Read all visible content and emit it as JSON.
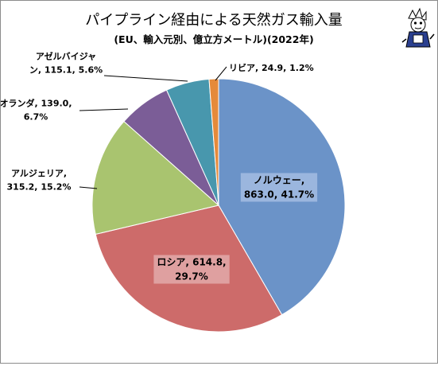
{
  "chart_data": {
    "type": "pie",
    "title": "パイプライン経由による天然ガス輸入量",
    "subtitle": "(EU、輸入元別、億立方メートル)(2022年)",
    "start_angle_deg": 0,
    "direction": "clockwise",
    "slices": [
      {
        "name": "ノルウェー",
        "value": 863.0,
        "percent": "41.7%",
        "color": "#6b93c8",
        "label_lines": [
          "ノルウェー,",
          "863.0, 41.7%"
        ],
        "label_style": "inside"
      },
      {
        "name": "ロシア",
        "value": 614.8,
        "percent": "29.7%",
        "color": "#cd6b6a",
        "label_lines": [
          "ロシア, 614.8,",
          "29.7%"
        ],
        "label_style": "inside"
      },
      {
        "name": "アルジェリア",
        "value": 315.2,
        "percent": "15.2%",
        "color": "#a9c46f",
        "label_lines": [
          "アルジェリア,",
          "315.2, 15.2%"
        ],
        "label_style": "outside"
      },
      {
        "name": "オランダ",
        "value": 139.0,
        "percent": "6.7%",
        "color": "#7b5d97",
        "label_lines": [
          "オランダ, 139.0,",
          "6.7%"
        ],
        "label_style": "outside"
      },
      {
        "name": "アゼルバイジャン",
        "value": 115.1,
        "percent": "5.6%",
        "color": "#4897ad",
        "label_lines": [
          "アゼルバイジャ",
          "ン, 115.1, 5.6%"
        ],
        "label_style": "outside"
      },
      {
        "name": "リビア",
        "value": 24.9,
        "percent": "1.2%",
        "color": "#e58a3a",
        "label_lines": [
          "リビア, 24.9, 1.2%"
        ],
        "label_style": "outside"
      }
    ]
  },
  "mascot": {
    "icon": "mascot-icon",
    "colors": {
      "body": "#2a3f8f",
      "outline": "#000000"
    }
  }
}
